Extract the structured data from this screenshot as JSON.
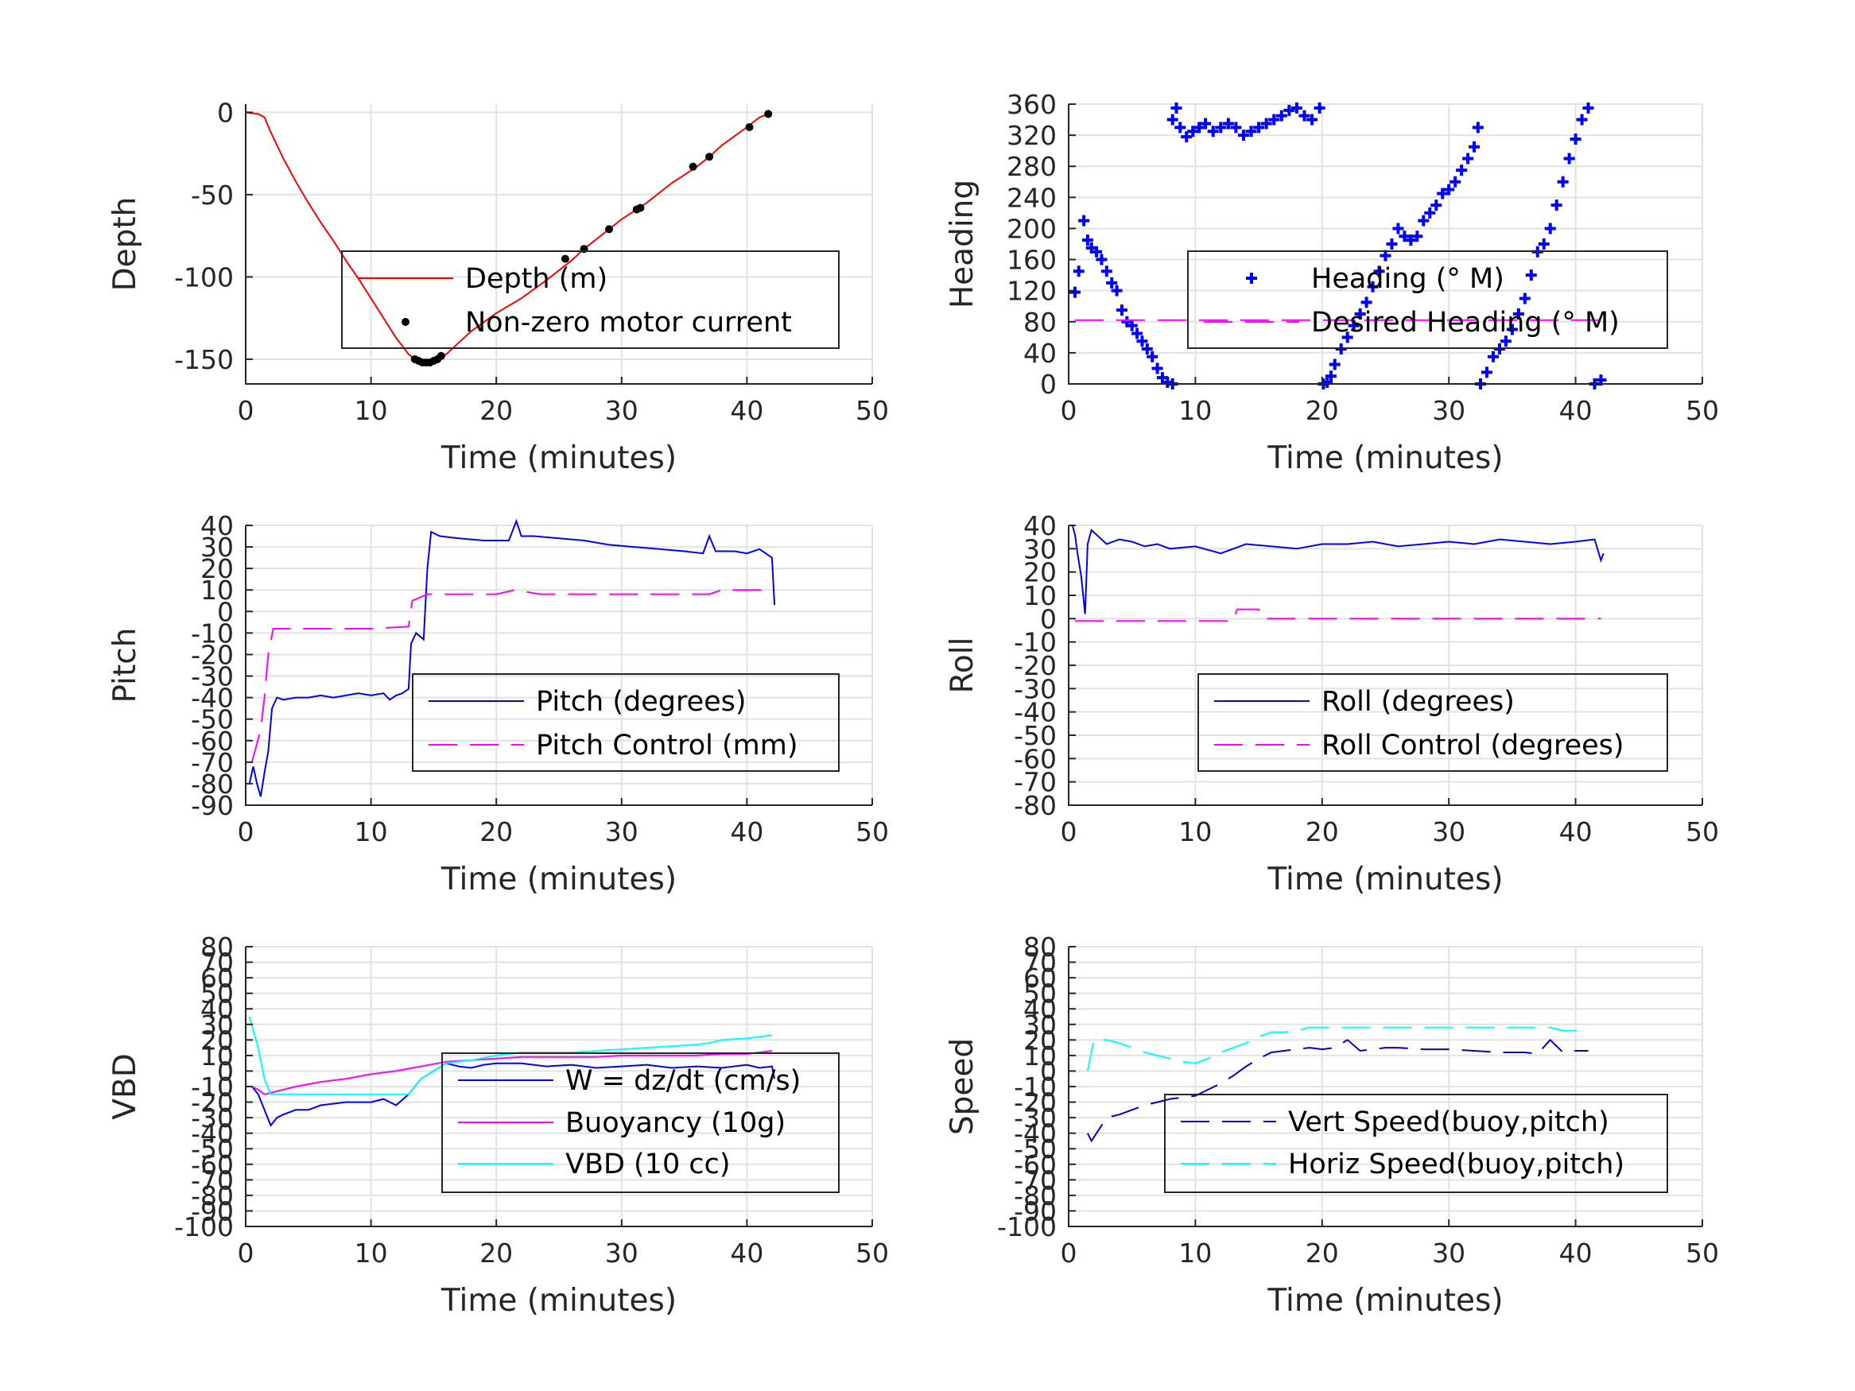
{
  "chart_data": [
    {
      "type": "line",
      "xlabel": "Time (minutes)",
      "ylabel": "Depth",
      "xlim": [
        0,
        50
      ],
      "ylim": [
        -165,
        5
      ],
      "xticks": [
        "0",
        "10",
        "20",
        "30",
        "40",
        "50"
      ],
      "yticks": [
        "0",
        "-50",
        "-100",
        "-150"
      ],
      "grid": true,
      "legend_position": "center-right",
      "series": [
        {
          "name": "Depth (m)",
          "style": "solid",
          "color": "#ff0000",
          "x": [
            0,
            1,
            1.5,
            2,
            3,
            4,
            5,
            6,
            7,
            8,
            9,
            10,
            11,
            12,
            13,
            14,
            15,
            16,
            17,
            18,
            20,
            22,
            24,
            26,
            27,
            28,
            30,
            32,
            34,
            36,
            37,
            38,
            40,
            41,
            42
          ],
          "y": [
            0,
            -1,
            -3,
            -12,
            -28,
            -42,
            -55,
            -67,
            -78,
            -90,
            -101,
            -113,
            -125,
            -137,
            -147,
            -153,
            -152,
            -147,
            -140,
            -133,
            -122,
            -113,
            -102,
            -90,
            -83,
            -77,
            -65,
            -55,
            -43,
            -33,
            -27,
            -20,
            -9,
            -3,
            0
          ]
        },
        {
          "name": "Non-zero motor current",
          "style": "dots",
          "color": "#000000",
          "x": [
            13.5,
            13.8,
            14.1,
            14.4,
            14.7,
            15,
            15.3,
            15.6,
            25.5,
            27,
            29,
            31.2,
            31.5,
            35.7,
            37,
            40.2,
            41.7
          ],
          "y": [
            -150,
            -151,
            -152,
            -152,
            -152,
            -151,
            -150,
            -148,
            -89,
            -83,
            -71,
            -59,
            -58,
            -33,
            -27,
            -9,
            -1
          ]
        }
      ]
    },
    {
      "type": "scatter",
      "xlabel": "Time (minutes)",
      "ylabel": "Heading",
      "xlim": [
        0,
        50
      ],
      "ylim": [
        0,
        360
      ],
      "xticks": [
        "0",
        "10",
        "20",
        "30",
        "40",
        "50"
      ],
      "yticks": [
        "360",
        "320",
        "280",
        "240",
        "200",
        "160",
        "120",
        "80",
        "40",
        "0"
      ],
      "grid": true,
      "legend_position": "center-right",
      "series": [
        {
          "name": "Heading (° M)",
          "style": "plus",
          "color": "#0000ff",
          "x": [
            0.5,
            0.8,
            1.2,
            1.5,
            1.8,
            2.2,
            2.6,
            3,
            3.4,
            3.8,
            4.2,
            4.6,
            5,
            5.4,
            5.8,
            6.2,
            6.6,
            7,
            7.4,
            7.8,
            8.2,
            8.5,
            8.2,
            8.8,
            9.3,
            9.8,
            10.3,
            10.8,
            11.4,
            12,
            12.6,
            13.2,
            13.8,
            14.4,
            15,
            15.6,
            16.2,
            16.8,
            17.4,
            18,
            18.6,
            19.2,
            19.8,
            20.1,
            20.4,
            20.7,
            21,
            21.5,
            22,
            22.5,
            23,
            23.5,
            24,
            24.5,
            25,
            25.5,
            26,
            26.5,
            27,
            27.5,
            28,
            28.5,
            29,
            29.5,
            30,
            30.5,
            31,
            31.5,
            32,
            32.3,
            32.5,
            33,
            33.5,
            34,
            34.5,
            35,
            35.5,
            36,
            36.5,
            37,
            37.5,
            38,
            38.5,
            39,
            39.5,
            40,
            40.5,
            41,
            41.5,
            42
          ],
          "y": [
            118,
            145,
            210,
            185,
            175,
            170,
            160,
            145,
            130,
            120,
            95,
            80,
            75,
            65,
            55,
            45,
            35,
            20,
            8,
            2,
            0,
            355,
            340,
            330,
            318,
            325,
            330,
            335,
            325,
            330,
            335,
            330,
            320,
            325,
            330,
            335,
            340,
            345,
            352,
            355,
            345,
            340,
            355,
            0,
            2,
            10,
            25,
            45,
            60,
            75,
            90,
            105,
            125,
            145,
            165,
            180,
            200,
            190,
            185,
            190,
            210,
            220,
            230,
            245,
            250,
            260,
            275,
            290,
            305,
            330,
            0,
            15,
            35,
            45,
            55,
            70,
            90,
            110,
            140,
            170,
            180,
            200,
            230,
            260,
            290,
            315,
            340,
            355,
            0,
            5
          ]
        },
        {
          "name": "Desired Heading (° M)",
          "style": "dashed",
          "color": "#ff00ff",
          "x": [
            0.5,
            42
          ],
          "y": [
            82,
            82
          ]
        }
      ]
    },
    {
      "type": "line",
      "xlabel": "Time (minutes)",
      "ylabel": "Pitch",
      "xlim": [
        0,
        50
      ],
      "ylim": [
        -90,
        40
      ],
      "xticks": [
        "0",
        "10",
        "20",
        "30",
        "40",
        "50"
      ],
      "yticks": [
        "40",
        "30",
        "20",
        "10",
        "0",
        "-10",
        "-20",
        "-30",
        "-40",
        "-50",
        "-60",
        "-70",
        "-80",
        "-90"
      ],
      "grid": true,
      "legend_position": "lower-right",
      "series": [
        {
          "name": "Pitch (degrees)",
          "style": "solid",
          "color": "#0000ff",
          "x": [
            0.3,
            0.6,
            0.9,
            1.2,
            1.5,
            1.8,
            2.1,
            2.5,
            3,
            4,
            5,
            6,
            7,
            8,
            9,
            10,
            11,
            11.5,
            12,
            12.5,
            13,
            13.2,
            13.6,
            14.2,
            14.5,
            14.8,
            15.5,
            17,
            19,
            21,
            21.6,
            22,
            23,
            25,
            27,
            29,
            31,
            33,
            35,
            36.5,
            37,
            37.5,
            39,
            40,
            41,
            42,
            42.2
          ],
          "y": [
            -80,
            -72,
            -80,
            -86,
            -75,
            -65,
            -45,
            -40,
            -41,
            -40,
            -40,
            -39,
            -40,
            -39,
            -38,
            -39,
            -38,
            -41,
            -39,
            -38,
            -36,
            -15,
            -10,
            -13,
            20,
            37,
            35,
            34,
            33,
            33,
            42,
            35,
            35,
            34,
            33,
            31,
            30,
            29,
            28,
            27,
            35,
            28,
            28,
            27,
            29,
            25,
            3
          ]
        },
        {
          "name": "Pitch Control (mm)",
          "style": "dashed",
          "color": "#ff00ff",
          "x": [
            0.5,
            1.2,
            1.5,
            1.8,
            2.2,
            5,
            10,
            13,
            13.3,
            14.5,
            20,
            21.5,
            22.5,
            23.5,
            30,
            37,
            38,
            42
          ],
          "y": [
            -70,
            -55,
            -40,
            -20,
            -8,
            -8,
            -8,
            -7,
            5,
            8,
            8,
            10,
            9,
            8,
            8,
            8,
            10,
            10
          ]
        }
      ]
    },
    {
      "type": "line",
      "xlabel": "Time (minutes)",
      "ylabel": "Roll",
      "xlim": [
        0,
        50
      ],
      "ylim": [
        -80,
        40
      ],
      "xticks": [
        "0",
        "10",
        "20",
        "30",
        "40",
        "50"
      ],
      "yticks": [
        "40",
        "30",
        "20",
        "10",
        "0",
        "-10",
        "-20",
        "-30",
        "-40",
        "-50",
        "-60",
        "-70",
        "-80"
      ],
      "grid": true,
      "legend_position": "lower-right",
      "series": [
        {
          "name": "Roll (degrees)",
          "style": "solid",
          "color": "#0000ff",
          "x": [
            0.3,
            0.5,
            0.7,
            1,
            1.3,
            1.5,
            1.8,
            2.2,
            3,
            4,
            5,
            6,
            7,
            8,
            10,
            12,
            14,
            16,
            18,
            20,
            22,
            24,
            26,
            28,
            30,
            32,
            34,
            36,
            38,
            40,
            41.5,
            42,
            42.2
          ],
          "y": [
            40,
            36,
            28,
            18,
            2,
            32,
            38,
            36,
            32,
            34,
            33,
            31,
            32,
            30,
            31,
            28,
            32,
            31,
            30,
            32,
            32,
            33,
            31,
            32,
            33,
            32,
            34,
            33,
            32,
            33,
            34,
            25,
            28
          ]
        },
        {
          "name": "Roll Control (degrees)",
          "style": "dashed",
          "color": "#ff00ff",
          "x": [
            0.5,
            13,
            13.3,
            15,
            15.3,
            42
          ],
          "y": [
            -1,
            -1,
            4,
            4,
            0,
            0
          ]
        }
      ]
    },
    {
      "type": "line",
      "xlabel": "Time (minutes)",
      "ylabel": "VBD",
      "xlim": [
        0,
        50
      ],
      "ylim": [
        -100,
        80
      ],
      "xticks": [
        "0",
        "10",
        "20",
        "30",
        "40",
        "50"
      ],
      "yticks": [
        "80",
        "70",
        "60",
        "50",
        "40",
        "30",
        "20",
        "10",
        "0",
        "-10",
        "-20",
        "-30",
        "-40",
        "-50",
        "-60",
        "-70",
        "-80",
        "-90",
        "-100"
      ],
      "grid": true,
      "legend_position": "center-right",
      "series": [
        {
          "name": "W = dz/dt (cm/s)",
          "style": "solid",
          "color": "#0000ff",
          "x": [
            0.5,
            1,
            1.5,
            2,
            2.5,
            3,
            4,
            5,
            6,
            8,
            10,
            11,
            12,
            13,
            14,
            15,
            16,
            17,
            18,
            19,
            20,
            22,
            24,
            26,
            28,
            30,
            32,
            34,
            36,
            38,
            40,
            41,
            42,
            42.2
          ],
          "y": [
            -10,
            -15,
            -25,
            -35,
            -30,
            -28,
            -25,
            -25,
            -22,
            -20,
            -20,
            -18,
            -22,
            -15,
            -5,
            0,
            5,
            3,
            2,
            4,
            5,
            5,
            3,
            4,
            2,
            3,
            4,
            2,
            3,
            2,
            4,
            2,
            3,
            -5
          ]
        },
        {
          "name": "Buoyancy (10g)",
          "style": "solid",
          "color": "#ff00ff",
          "x": [
            0.5,
            1,
            1.5,
            2,
            4,
            6,
            8,
            10,
            12,
            14,
            16,
            18,
            20,
            22,
            24,
            26,
            28,
            30,
            32,
            34,
            36,
            38,
            40,
            41,
            42
          ],
          "y": [
            -10,
            -12,
            -15,
            -14,
            -10,
            -7,
            -5,
            -2,
            0,
            3,
            6,
            7,
            8,
            9,
            9,
            9,
            9,
            10,
            10,
            10,
            10,
            11,
            11,
            12,
            13
          ]
        },
        {
          "name": "VBD (10 cc)",
          "style": "solid",
          "color": "#00ffff",
          "x": [
            0.3,
            1,
            1.5,
            2,
            4,
            6,
            8,
            10,
            12,
            13,
            14,
            15,
            16,
            18,
            20,
            22,
            24,
            26,
            28,
            30,
            32,
            34,
            36,
            37,
            38,
            40,
            41,
            42
          ],
          "y": [
            35,
            15,
            -5,
            -15,
            -15,
            -15,
            -15,
            -15,
            -15,
            -15,
            -5,
            0,
            5,
            7,
            10,
            12,
            12,
            12,
            13,
            14,
            15,
            16,
            17,
            18,
            20,
            21,
            22,
            23
          ]
        }
      ]
    },
    {
      "type": "line",
      "xlabel": "Time (minutes)",
      "ylabel": "Speed",
      "xlim": [
        0,
        50
      ],
      "ylim": [
        -100,
        80
      ],
      "xticks": [
        "0",
        "10",
        "20",
        "30",
        "40",
        "50"
      ],
      "yticks": [
        "80",
        "70",
        "60",
        "50",
        "40",
        "30",
        "20",
        "10",
        "0",
        "-10",
        "-20",
        "-30",
        "-40",
        "-50",
        "-60",
        "-70",
        "-80",
        "-90",
        "-100"
      ],
      "grid": true,
      "legend_position": "lower-right",
      "series": [
        {
          "name": "Vert Speed(buoy,pitch)",
          "style": "dashed",
          "color": "#0000cd",
          "x": [
            1.5,
            1.8,
            2.2,
            3,
            4,
            5,
            6,
            7,
            8,
            9,
            10,
            11,
            12,
            13,
            14,
            15,
            16,
            17,
            18,
            19,
            20,
            21,
            22,
            23,
            24,
            25,
            26,
            28,
            30,
            32,
            34,
            35,
            36,
            37,
            38,
            39,
            40,
            41
          ],
          "y": [
            -40,
            -45,
            -40,
            -30,
            -28,
            -25,
            -22,
            -20,
            -18,
            -17,
            -16,
            -12,
            -8,
            -3,
            3,
            8,
            12,
            13,
            14,
            15,
            14,
            15,
            20,
            13,
            14,
            15,
            15,
            14,
            14,
            13,
            12,
            12,
            12,
            11,
            20,
            12,
            13,
            13
          ]
        },
        {
          "name": "Horiz Speed(buoy,pitch)",
          "style": "dashed",
          "color": "#00ffff",
          "x": [
            1.5,
            2,
            3,
            4,
            5,
            6,
            7,
            8,
            9,
            10,
            11,
            12,
            13,
            14,
            15,
            16,
            17,
            18,
            19,
            20,
            22,
            24,
            26,
            28,
            30,
            32,
            34,
            36,
            38,
            39,
            40,
            41
          ],
          "y": [
            0,
            20,
            20,
            18,
            15,
            12,
            10,
            8,
            6,
            5,
            8,
            12,
            15,
            18,
            22,
            25,
            25,
            26,
            28,
            28,
            28,
            28,
            28,
            28,
            28,
            28,
            28,
            28,
            28,
            26,
            26,
            30
          ]
        }
      ]
    }
  ]
}
